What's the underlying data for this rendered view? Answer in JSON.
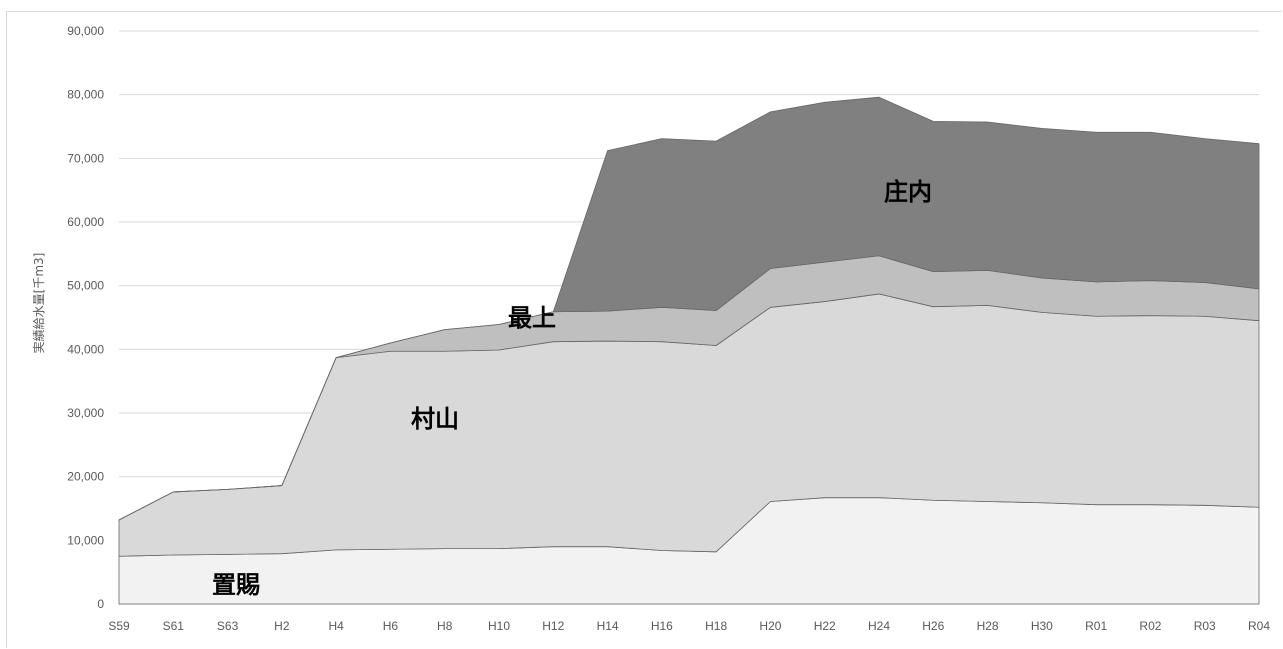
{
  "chart_data": {
    "type": "area",
    "stacked": true,
    "categories": [
      "S59",
      "S61",
      "S63",
      "H2",
      "H4",
      "H6",
      "H8",
      "H10",
      "H12",
      "H14",
      "H16",
      "H18",
      "H20",
      "H22",
      "H24",
      "H26",
      "H28",
      "H30",
      "R01",
      "R02",
      "R03",
      "R04"
    ],
    "series": [
      {
        "name": "置賜",
        "color": "#f2f2f2",
        "values": [
          7500,
          7700,
          7800,
          7900,
          8500,
          8600,
          8700,
          8700,
          9000,
          9000,
          8400,
          8200,
          16100,
          16700,
          16700,
          16300,
          16100,
          15900,
          15600,
          15600,
          15500,
          15200
        ]
      },
      {
        "name": "村山",
        "color": "#d9d9d9",
        "values": [
          5700,
          9900,
          10200,
          10700,
          30200,
          31100,
          31000,
          31200,
          32200,
          32300,
          32800,
          32400,
          30500,
          30800,
          32000,
          30400,
          30800,
          29900,
          29600,
          29700,
          29700,
          29300
        ]
      },
      {
        "name": "最上",
        "color": "#bfbfbf",
        "values": [
          0,
          0,
          0,
          0,
          0,
          1300,
          3400,
          4000,
          4700,
          4700,
          5400,
          5500,
          6100,
          6200,
          6000,
          5500,
          5500,
          5400,
          5400,
          5500,
          5300,
          5000
        ]
      },
      {
        "name": "庄内",
        "color": "#808080",
        "values": [
          0,
          0,
          0,
          0,
          0,
          0,
          0,
          0,
          0,
          25200,
          26500,
          26600,
          24600,
          25100,
          24900,
          23600,
          23300,
          23500,
          23500,
          23300,
          22600,
          22800
        ]
      }
    ],
    "ylabel": "実績給水量[千m3]",
    "ylim": [
      0,
      90000
    ],
    "yticks": [
      "0",
      "10,000",
      "20,000",
      "30,000",
      "40,000",
      "50,000",
      "60,000",
      "70,000",
      "80,000",
      "90,000"
    ],
    "grid": true,
    "legend": "none"
  }
}
